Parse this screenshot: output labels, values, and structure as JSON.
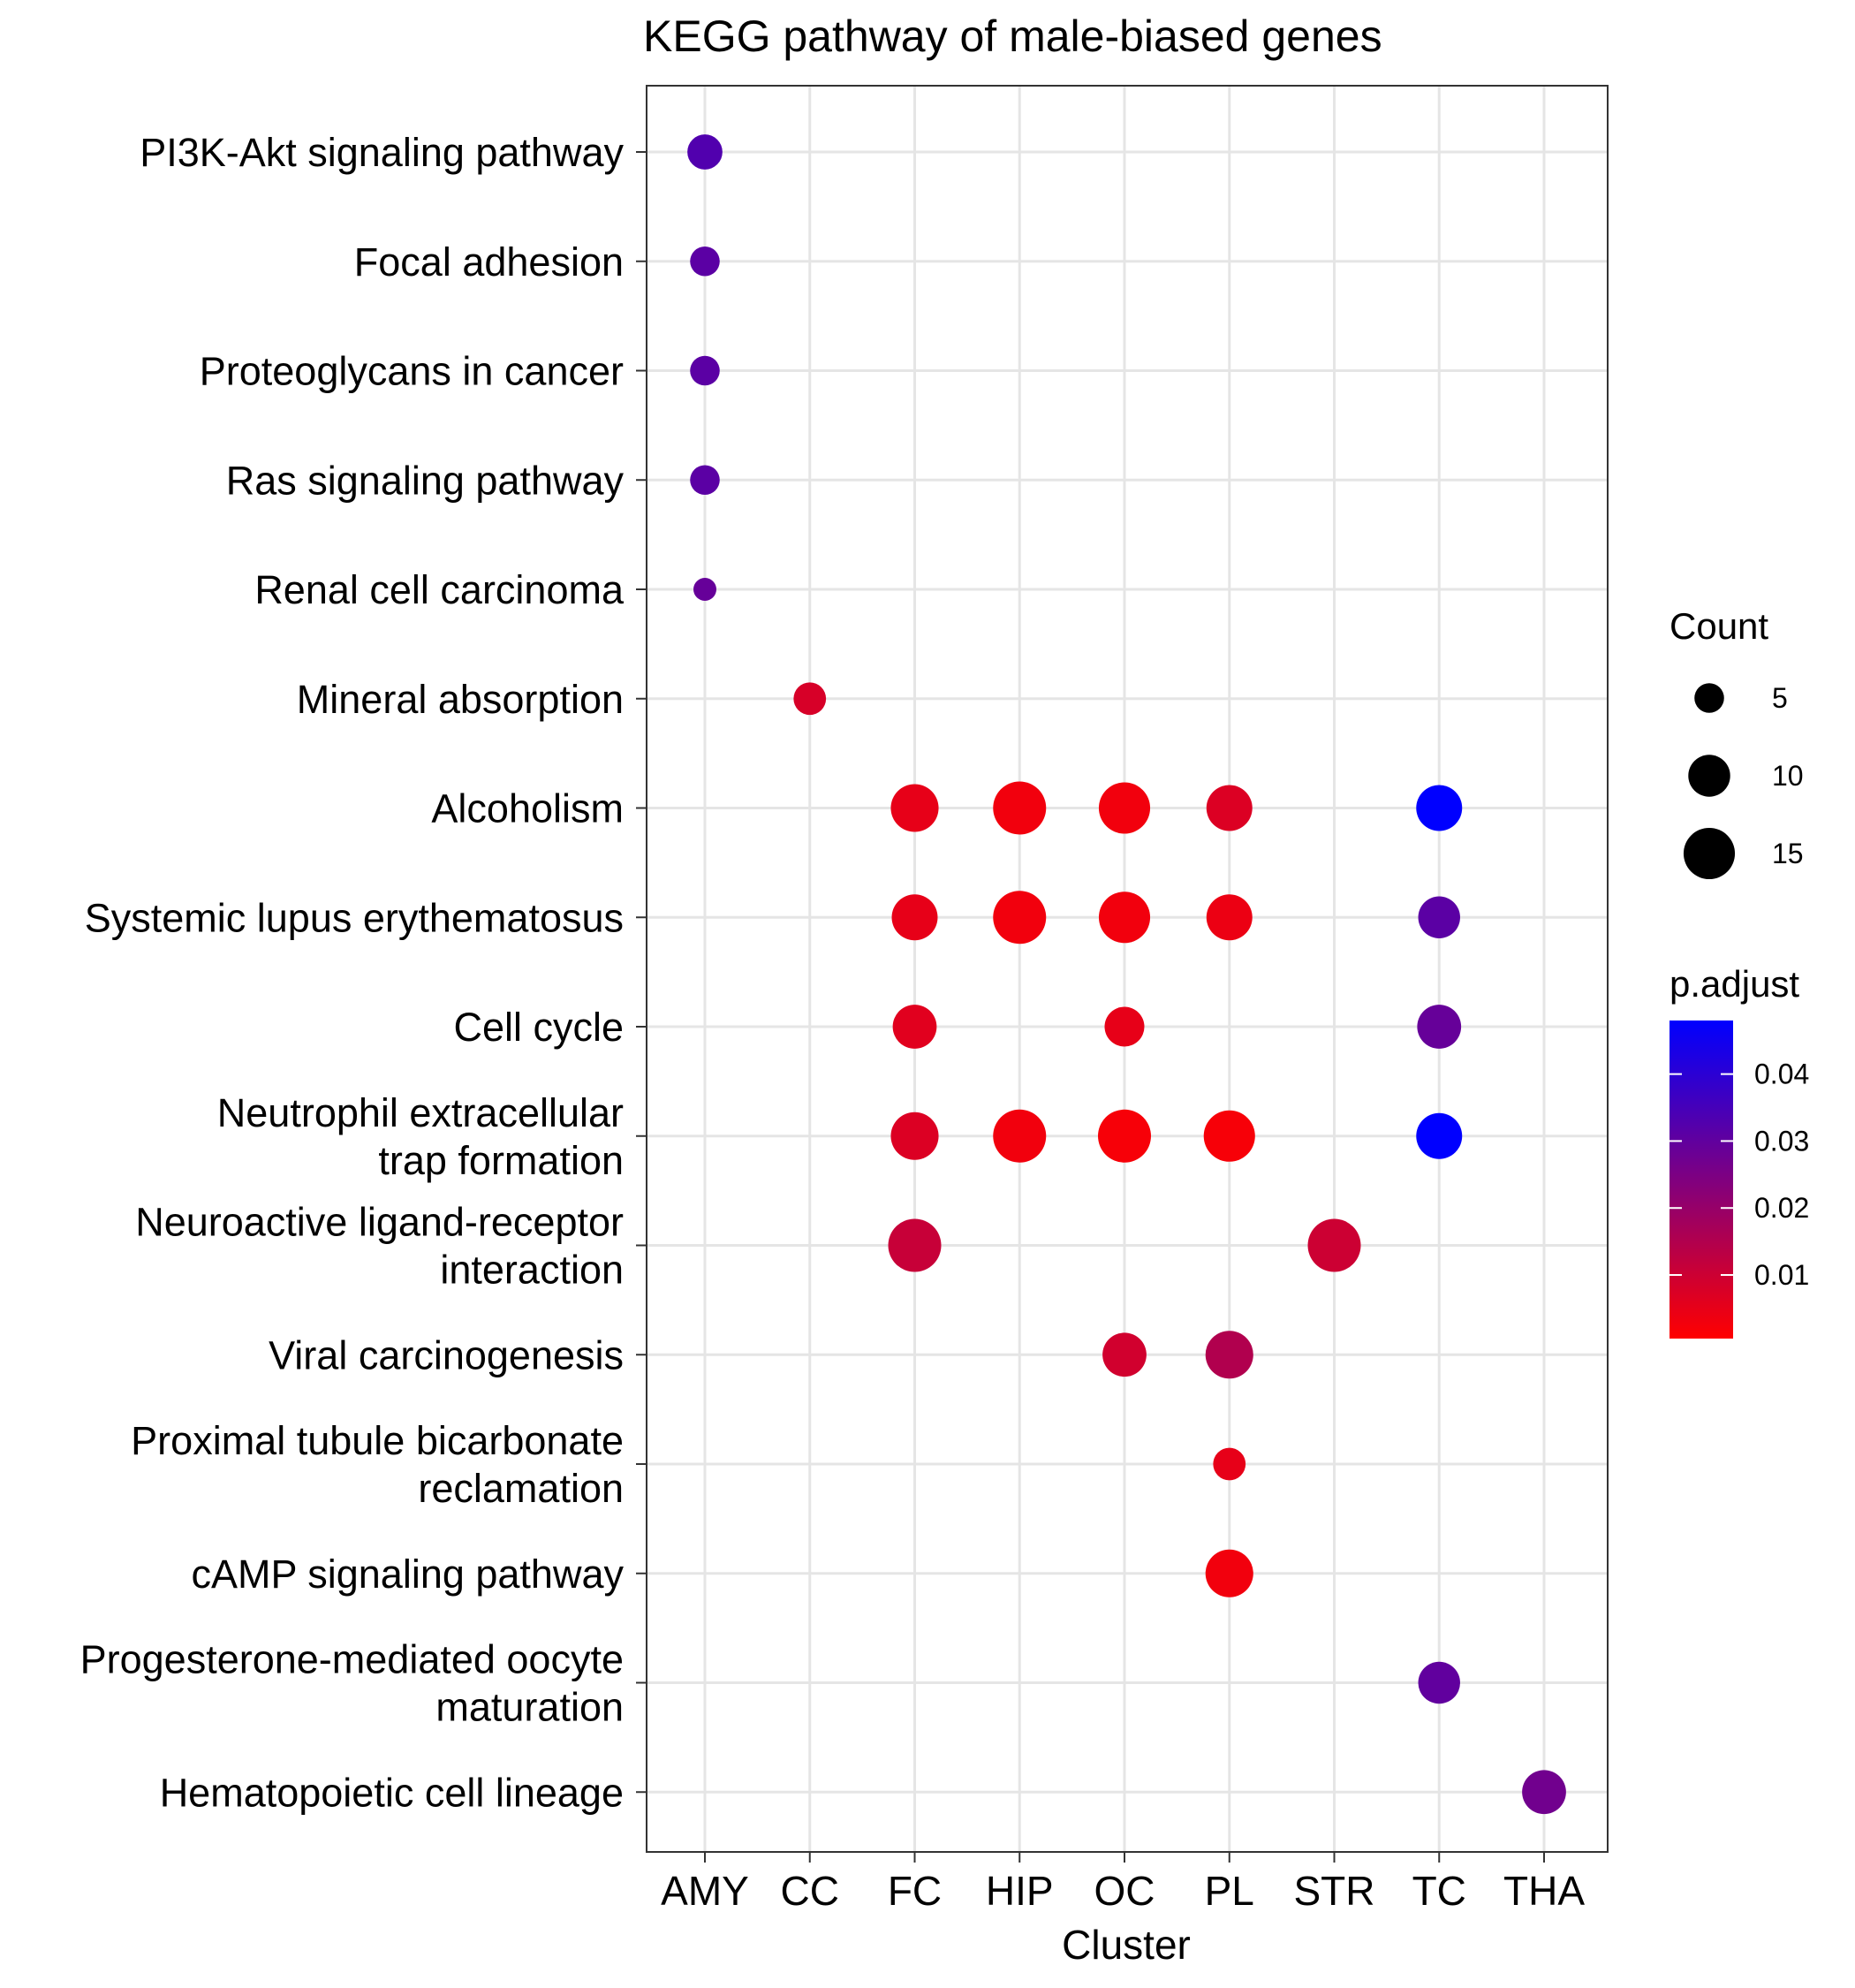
{
  "chart_data": {
    "type": "scatter",
    "title": "KEGG pathway of male-biased genes",
    "xlabel": "Cluster",
    "ylabel": "",
    "grid": true,
    "x_categories": [
      "AMY",
      "CC",
      "FC",
      "HIP",
      "OC",
      "PL",
      "STR",
      "TC",
      "THA"
    ],
    "y_categories": [
      "PI3K-Akt signaling pathway",
      "Focal adhesion",
      "Proteoglycans in cancer",
      "Ras signaling pathway",
      "Renal cell carcinoma",
      "Mineral absorption",
      "Alcoholism",
      "Systemic lupus erythematosus",
      "Cell cycle",
      "Neutrophil extracellular\ntrap formation",
      "Neuroactive ligand-receptor\ninteraction",
      "Viral carcinogenesis",
      "Proximal tubule bicarbonate\nreclamation",
      "cAMP signaling pathway",
      "Progesterone-mediated oocyte\nmaturation",
      "Hematopoietic cell lineage"
    ],
    "points": [
      {
        "x": "AMY",
        "y": "PI3K-Akt signaling pathway",
        "count": 7,
        "p_adjust": 0.033
      },
      {
        "x": "AMY",
        "y": "Focal adhesion",
        "count": 5,
        "p_adjust": 0.031
      },
      {
        "x": "AMY",
        "y": "Proteoglycans in cancer",
        "count": 5,
        "p_adjust": 0.031
      },
      {
        "x": "AMY",
        "y": "Ras signaling pathway",
        "count": 5,
        "p_adjust": 0.031
      },
      {
        "x": "AMY",
        "y": "Renal cell carcinoma",
        "count": 3,
        "p_adjust": 0.029
      },
      {
        "x": "CC",
        "y": "Mineral absorption",
        "count": 6,
        "p_adjust": 0.008
      },
      {
        "x": "FC",
        "y": "Alcoholism",
        "count": 13,
        "p_adjust": 0.005
      },
      {
        "x": "HIP",
        "y": "Alcoholism",
        "count": 16,
        "p_adjust": 0.003
      },
      {
        "x": "OC",
        "y": "Alcoholism",
        "count": 15,
        "p_adjust": 0.003
      },
      {
        "x": "PL",
        "y": "Alcoholism",
        "count": 12,
        "p_adjust": 0.007
      },
      {
        "x": "TC",
        "y": "Alcoholism",
        "count": 12,
        "p_adjust": 0.048
      },
      {
        "x": "FC",
        "y": "Systemic lupus erythematosus",
        "count": 12,
        "p_adjust": 0.005
      },
      {
        "x": "HIP",
        "y": "Systemic lupus erythematosus",
        "count": 16,
        "p_adjust": 0.003
      },
      {
        "x": "OC",
        "y": "Systemic lupus erythematosus",
        "count": 15,
        "p_adjust": 0.003
      },
      {
        "x": "PL",
        "y": "Systemic lupus erythematosus",
        "count": 12,
        "p_adjust": 0.004
      },
      {
        "x": "TC",
        "y": "Systemic lupus erythematosus",
        "count": 10,
        "p_adjust": 0.031
      },
      {
        "x": "FC",
        "y": "Cell cycle",
        "count": 11,
        "p_adjust": 0.006
      },
      {
        "x": "OC",
        "y": "Cell cycle",
        "count": 9,
        "p_adjust": 0.005
      },
      {
        "x": "TC",
        "y": "Cell cycle",
        "count": 11,
        "p_adjust": 0.029
      },
      {
        "x": "FC",
        "y": "Neutrophil extracellular\ntrap formation",
        "count": 13,
        "p_adjust": 0.007
      },
      {
        "x": "HIP",
        "y": "Neutrophil extracellular\ntrap formation",
        "count": 16,
        "p_adjust": 0.003
      },
      {
        "x": "OC",
        "y": "Neutrophil extracellular\ntrap formation",
        "count": 16,
        "p_adjust": 0.002
      },
      {
        "x": "PL",
        "y": "Neutrophil extracellular\ntrap formation",
        "count": 15,
        "p_adjust": 0.002
      },
      {
        "x": "TC",
        "y": "Neutrophil extracellular\ntrap formation",
        "count": 12,
        "p_adjust": 0.048
      },
      {
        "x": "FC",
        "y": "Neuroactive ligand-receptor\ninteraction",
        "count": 16,
        "p_adjust": 0.011
      },
      {
        "x": "STR",
        "y": "Neuroactive ligand-receptor\ninteraction",
        "count": 16,
        "p_adjust": 0.01
      },
      {
        "x": "OC",
        "y": "Viral carcinogenesis",
        "count": 11,
        "p_adjust": 0.009
      },
      {
        "x": "PL",
        "y": "Viral carcinogenesis",
        "count": 13,
        "p_adjust": 0.015
      },
      {
        "x": "PL",
        "y": "Proximal tubule bicarbonate\nreclamation",
        "count": 6,
        "p_adjust": 0.005
      },
      {
        "x": "PL",
        "y": "cAMP signaling pathway",
        "count": 13,
        "p_adjust": 0.003
      },
      {
        "x": "TC",
        "y": "Progesterone-mediated oocyte\nmaturation",
        "count": 10,
        "p_adjust": 0.03
      },
      {
        "x": "THA",
        "y": "Hematopoietic cell lineage",
        "count": 11,
        "p_adjust": 0.027
      }
    ],
    "legend_placement": "right",
    "size_legend": {
      "title": "Count",
      "values": [
        5,
        10,
        15
      ],
      "labels": [
        "5",
        "10",
        "15"
      ]
    },
    "color_legend": {
      "title": "p.adjust",
      "range": [
        0.0005,
        0.048
      ],
      "ticks": [
        0.01,
        0.02,
        0.03,
        0.04
      ],
      "tick_labels": [
        "0.01",
        "0.02",
        "0.03",
        "0.04"
      ],
      "low_color": "#FF0000",
      "high_color": "#0000FF"
    }
  }
}
